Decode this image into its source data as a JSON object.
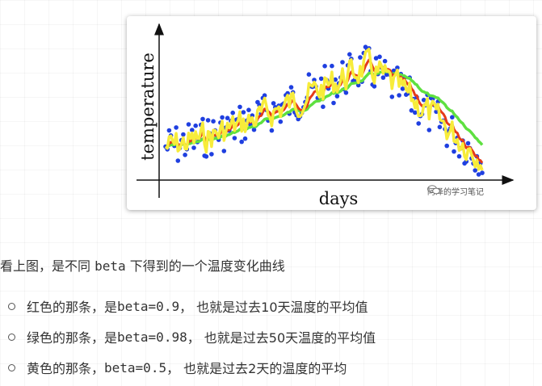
{
  "figure": {
    "ylabel": "temperature",
    "xlabel": "days",
    "watermark": "阿泽的学习笔记",
    "watermark_icon": "wechat-icon",
    "dot_color": "#1f3fe0",
    "red_color": "#e53a1a",
    "green_color": "#5ee040",
    "yellow_color": "#f7ec3a"
  },
  "article": {
    "intro_prefix": "看上图，是不同 ",
    "intro_code": "beta",
    "intro_suffix": " 下得到的一个温度变化曲线",
    "bullets": [
      {
        "prefix": "红色的那条，是 ",
        "code": "beta=0.9",
        "suffix": "， 也就是过去10天温度的平均值"
      },
      {
        "prefix": "绿色的那条，是 ",
        "code": "beta=0.98",
        "suffix": "， 也就是过去50天温度的平均值"
      },
      {
        "prefix": "黄色的那条，",
        "code": "beta=0.5",
        "suffix": "， 也就是过去2天的温度的平均"
      }
    ]
  }
}
